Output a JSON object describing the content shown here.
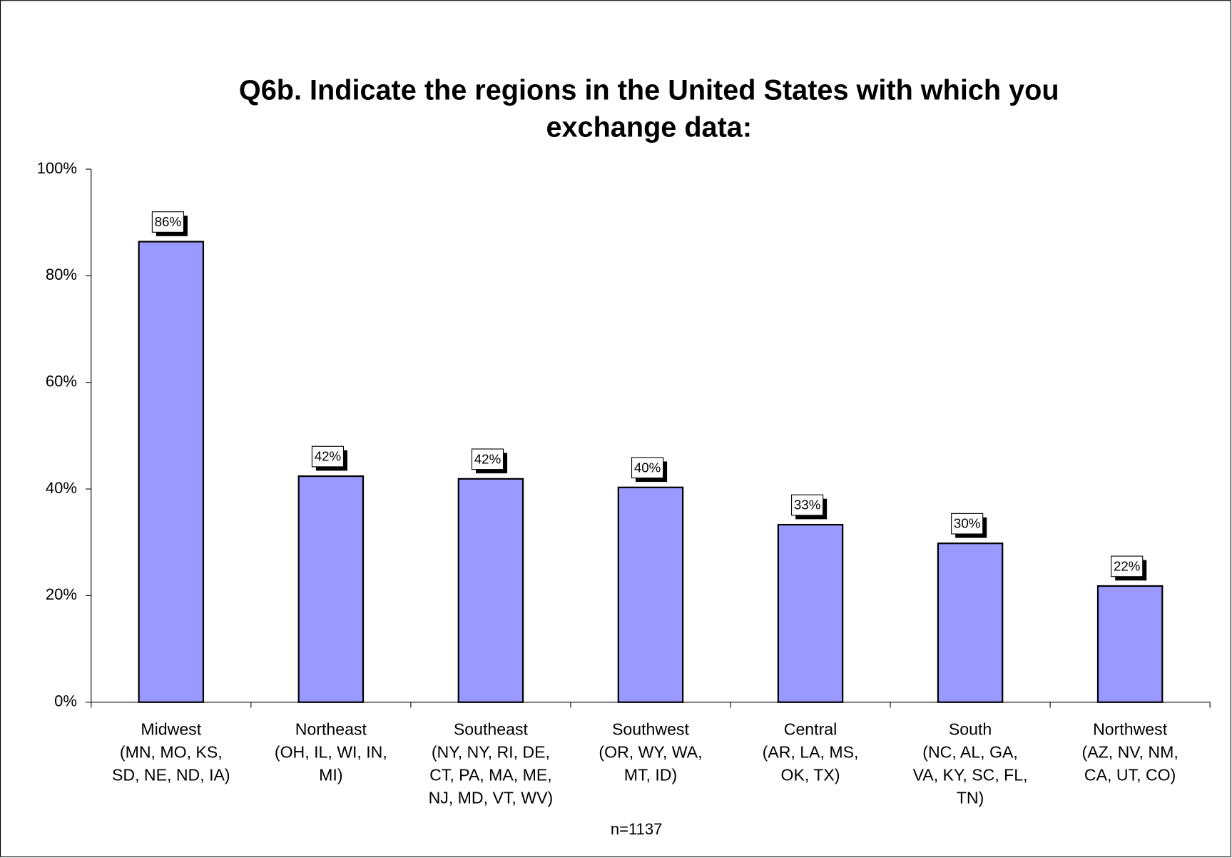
{
  "chart_data": {
    "type": "bar",
    "title": [
      "Q6b.  Indicate the regions in the United States with which you",
      "exchange data:"
    ],
    "categories": [
      [
        "Midwest",
        "(MN, MO, KS,",
        "SD, NE, ND, IA)"
      ],
      [
        "Northeast",
        "(OH, IL, WI, IN,",
        "MI)"
      ],
      [
        "Southeast",
        "(NY, NY, RI, DE,",
        "CT, PA, MA, ME,",
        "NJ, MD, VT, WV)"
      ],
      [
        "Southwest",
        "(OR, WY, WA,",
        "MT, ID)"
      ],
      [
        "Central",
        "(AR, LA, MS,",
        "OK, TX)"
      ],
      [
        "South",
        "(NC, AL, GA,",
        "VA, KY, SC, FL,",
        "TN)"
      ],
      [
        "Northwest",
        "(AZ, NV, NM,",
        "CA, UT, CO)"
      ]
    ],
    "values": [
      86.4,
      42.4,
      41.9,
      40.3,
      33.3,
      29.8,
      21.8
    ],
    "value_labels": [
      "86%",
      "42%",
      "42%",
      "40%",
      "33%",
      "30%",
      "22%"
    ],
    "color": "#9999ff",
    "ylim": [
      0,
      100
    ],
    "yticks": [
      {
        "value": 0,
        "label": "0%"
      },
      {
        "value": 20,
        "label": "20%"
      },
      {
        "value": 40,
        "label": "40%"
      },
      {
        "value": 60,
        "label": "60%"
      },
      {
        "value": 80,
        "label": "80%"
      },
      {
        "value": 100,
        "label": "100%"
      }
    ],
    "note": "n=1137"
  }
}
